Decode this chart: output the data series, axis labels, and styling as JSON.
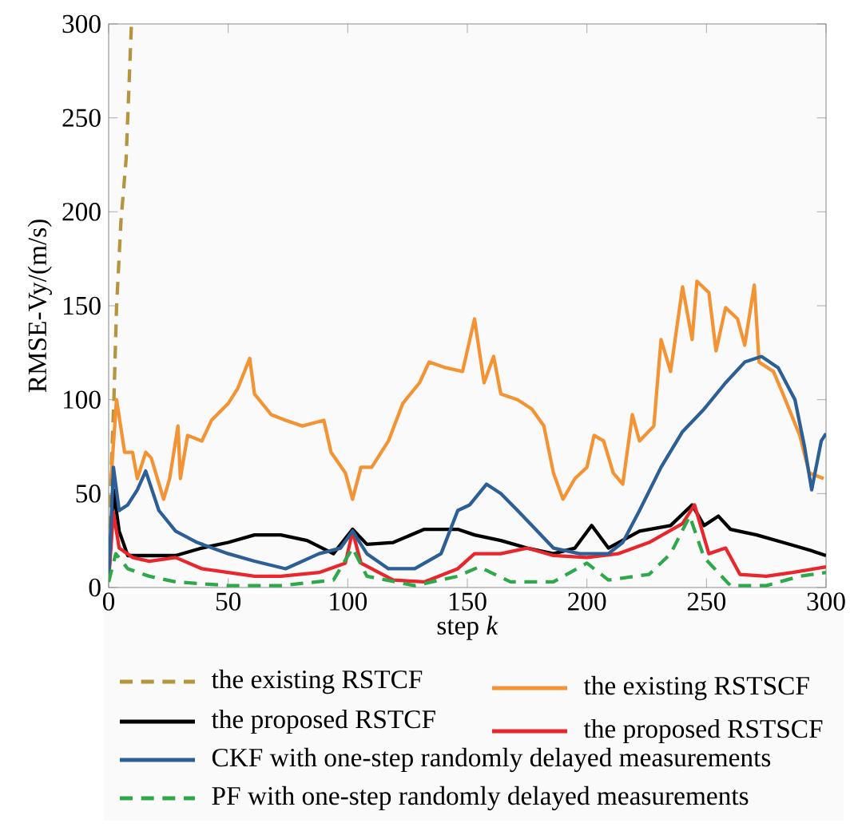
{
  "chart_data": {
    "type": "line",
    "xlabel": "step *k*",
    "ylabel": "RMSE-Vy/(m/s)",
    "xlim": [
      0,
      300
    ],
    "ylim": [
      0,
      300
    ],
    "xticks": [
      0,
      50,
      100,
      150,
      200,
      250,
      300
    ],
    "yticks": [
      0,
      50,
      100,
      150,
      200,
      250,
      300
    ],
    "grid": false,
    "legend": "bottom",
    "marker": "none",
    "series": [
      {
        "name": "the existing RSTCF",
        "color": "#b5963e",
        "line_style": "dashed",
        "x": [
          0,
          1,
          2.2,
          3.3,
          5.1,
          7.3,
          9.5
        ],
        "values": [
          20,
          60,
          100,
          149,
          194,
          228,
          299
        ]
      },
      {
        "name": "the existing RSTSCF",
        "color": "#f39334",
        "line_style": "solid",
        "x": [
          1,
          3.3,
          6.7,
          10,
          12,
          15.5,
          17.8,
          23,
          25.5,
          29,
          30,
          33,
          39,
          43,
          50,
          54,
          59,
          61,
          68,
          74,
          81,
          90,
          93,
          99,
          102,
          105.5,
          110,
          117,
          123,
          130,
          134,
          141,
          148,
          153,
          157,
          161,
          164,
          171,
          177,
          182,
          186,
          190,
          195,
          200,
          203,
          207,
          211,
          215,
          219,
          222,
          228,
          231,
          235,
          240,
          244,
          246,
          251,
          254,
          258,
          263,
          266,
          270,
          272,
          278,
          282,
          289,
          293,
          299
        ],
        "values": [
          58,
          100,
          72,
          72,
          58,
          72,
          69,
          47,
          58,
          86,
          58,
          81,
          78,
          89,
          98,
          106,
          122,
          103,
          92,
          89,
          86,
          89,
          72,
          61,
          47,
          64,
          64,
          78,
          98,
          109,
          120,
          117,
          115,
          143,
          109,
          123,
          103,
          100,
          95,
          86,
          61,
          47,
          58,
          64,
          81,
          78,
          61,
          55,
          92,
          78,
          86,
          132,
          115,
          160,
          132,
          163,
          157,
          126,
          149,
          143,
          129,
          161,
          120,
          115,
          103,
          81,
          61,
          58
        ]
      },
      {
        "name": "the proposed RSTCF",
        "color": "#000000",
        "line_style": "solid",
        "x": [
          0,
          2,
          4.4,
          8,
          17,
          28,
          39,
          50,
          61,
          72,
          83,
          94,
          102,
          108,
          119,
          132,
          146,
          153,
          164,
          175,
          186,
          195,
          202,
          209,
          222,
          235,
          244,
          249,
          255,
          260,
          271,
          282,
          293,
          300
        ],
        "values": [
          4,
          52,
          30,
          17,
          17,
          17,
          21,
          24,
          28,
          28,
          25,
          18,
          31,
          23,
          24,
          31,
          31,
          28,
          25,
          21,
          18,
          21,
          33,
          21,
          30,
          33,
          44,
          33,
          38,
          31,
          28,
          24,
          20,
          17
        ]
      },
      {
        "name": "the proposed RSTSCF",
        "color": "#e8262b",
        "line_style": "solid",
        "x": [
          0,
          2,
          4.4,
          10,
          17,
          28,
          39,
          50,
          61,
          72,
          88,
          99,
          102,
          105.5,
          119,
          132,
          146,
          153,
          164,
          175,
          186,
          200,
          213,
          226,
          240,
          245,
          251,
          258,
          264,
          275,
          286,
          300
        ],
        "values": [
          4,
          40,
          21,
          16,
          14,
          16,
          10,
          8,
          6,
          6,
          8,
          13,
          30,
          13,
          4,
          3,
          10,
          18,
          18,
          21,
          17,
          16,
          18,
          24,
          34,
          44,
          18,
          21,
          7,
          6,
          8,
          11
        ]
      },
      {
        "name": "CKF with one-step randomly delayed measurements",
        "color": "#2b5f95",
        "line_style": "solid",
        "x": [
          0,
          2,
          4.4,
          8,
          12,
          15.5,
          21,
          28,
          37,
          50,
          61,
          74,
          88,
          97,
          102,
          108,
          117,
          128,
          139,
          146,
          151,
          158,
          164,
          171,
          177,
          186,
          197,
          209,
          215,
          222,
          231,
          240,
          249,
          258,
          266,
          273,
          280,
          287,
          291,
          294,
          298,
          300
        ],
        "values": [
          4,
          64,
          41,
          44,
          52,
          62,
          41,
          30,
          24,
          18,
          14,
          10,
          18,
          21,
          30,
          18,
          10,
          10,
          18,
          41,
          44,
          55,
          50,
          41,
          33,
          21,
          18,
          18,
          24,
          41,
          64,
          83,
          95,
          109,
          120,
          123,
          117,
          100,
          75,
          52,
          78,
          82
        ]
      },
      {
        "name": "PF with one-step randomly delayed measurements",
        "color": "#2ea84a",
        "line_style": "dashed",
        "x": [
          0,
          3,
          8,
          17,
          28,
          50,
          72,
          94,
          102,
          108,
          128,
          146,
          155,
          168,
          186,
          200,
          209,
          226,
          235,
          243,
          249,
          260,
          275,
          289,
          300
        ],
        "values": [
          3,
          18,
          10,
          6,
          3,
          1,
          1,
          4,
          21,
          6,
          1,
          6,
          11,
          3,
          3,
          13,
          4,
          7,
          18,
          38,
          16,
          1,
          1,
          6,
          8
        ]
      }
    ]
  }
}
